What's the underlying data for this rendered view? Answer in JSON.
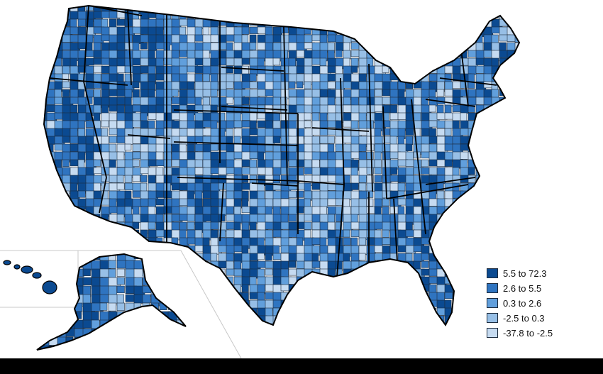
{
  "colors": {
    "bin_1": "#0b4a91",
    "bin_2": "#2f74c0",
    "bin_3": "#619fdc",
    "bin_4": "#97bfe6",
    "bin_5": "#c6dbf1",
    "state_border": "#000000",
    "county_border": "#1e2d3f",
    "inset_frame": "#c8c8c8"
  },
  "legend": {
    "items": [
      {
        "label": "5.5 to 72.3",
        "color": "#0b4a91"
      },
      {
        "label": "2.6 to 5.5",
        "color": "#2f74c0"
      },
      {
        "label": "0.3 to 2.6",
        "color": "#619fdc"
      },
      {
        "label": "-2.5 to 0.3",
        "color": "#97bfe6"
      },
      {
        "label": "-37.8 to -2.5",
        "color": "#c6dbf1"
      }
    ]
  },
  "map": {
    "type": "choropleth",
    "geography": "U.S. counties",
    "insets": [
      "Alaska",
      "Hawaii"
    ]
  }
}
